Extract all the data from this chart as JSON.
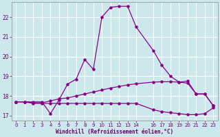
{
  "xlabel": "Windchill (Refroidissement éolien,°C)",
  "bg_color": "#cce8ec",
  "grid_color": "#ffffff",
  "line_color": "#880088",
  "xlim": [
    -0.5,
    23.5
  ],
  "ylim": [
    16.75,
    22.75
  ],
  "yticks": [
    17,
    18,
    19,
    20,
    21,
    22
  ],
  "xticks": [
    0,
    1,
    2,
    3,
    4,
    5,
    6,
    7,
    8,
    9,
    10,
    11,
    12,
    13,
    14,
    16,
    17,
    18,
    19,
    20,
    21,
    22,
    23
  ],
  "line1_x": [
    0,
    1,
    2,
    3,
    4,
    5,
    6,
    7,
    8,
    9,
    10,
    11,
    12,
    13,
    14,
    16,
    17,
    18,
    19,
    20,
    21,
    22,
    23
  ],
  "line1_y": [
    17.7,
    17.7,
    17.7,
    17.7,
    17.1,
    17.8,
    18.6,
    18.85,
    19.85,
    19.35,
    22.0,
    22.5,
    22.55,
    22.55,
    21.5,
    20.3,
    19.55,
    19.0,
    18.7,
    18.75,
    18.1,
    18.1,
    17.5
  ],
  "line2_x": [
    0,
    1,
    2,
    3,
    4,
    5,
    6,
    7,
    8,
    9,
    10,
    11,
    12,
    13,
    14,
    16,
    17,
    18,
    19,
    20,
    21,
    22,
    23
  ],
  "line2_y": [
    17.7,
    17.7,
    17.65,
    17.65,
    17.75,
    17.85,
    17.9,
    18.0,
    18.1,
    18.2,
    18.3,
    18.4,
    18.48,
    18.56,
    18.62,
    18.7,
    18.72,
    18.72,
    18.7,
    18.65,
    18.1,
    18.1,
    17.5
  ],
  "line3_x": [
    0,
    1,
    2,
    3,
    4,
    5,
    6,
    7,
    8,
    9,
    10,
    11,
    12,
    13,
    14,
    16,
    17,
    18,
    19,
    20,
    21,
    22,
    23
  ],
  "line3_y": [
    17.7,
    17.7,
    17.62,
    17.62,
    17.62,
    17.62,
    17.62,
    17.62,
    17.62,
    17.62,
    17.62,
    17.62,
    17.62,
    17.62,
    17.62,
    17.3,
    17.2,
    17.15,
    17.1,
    17.05,
    17.05,
    17.1,
    17.4
  ]
}
